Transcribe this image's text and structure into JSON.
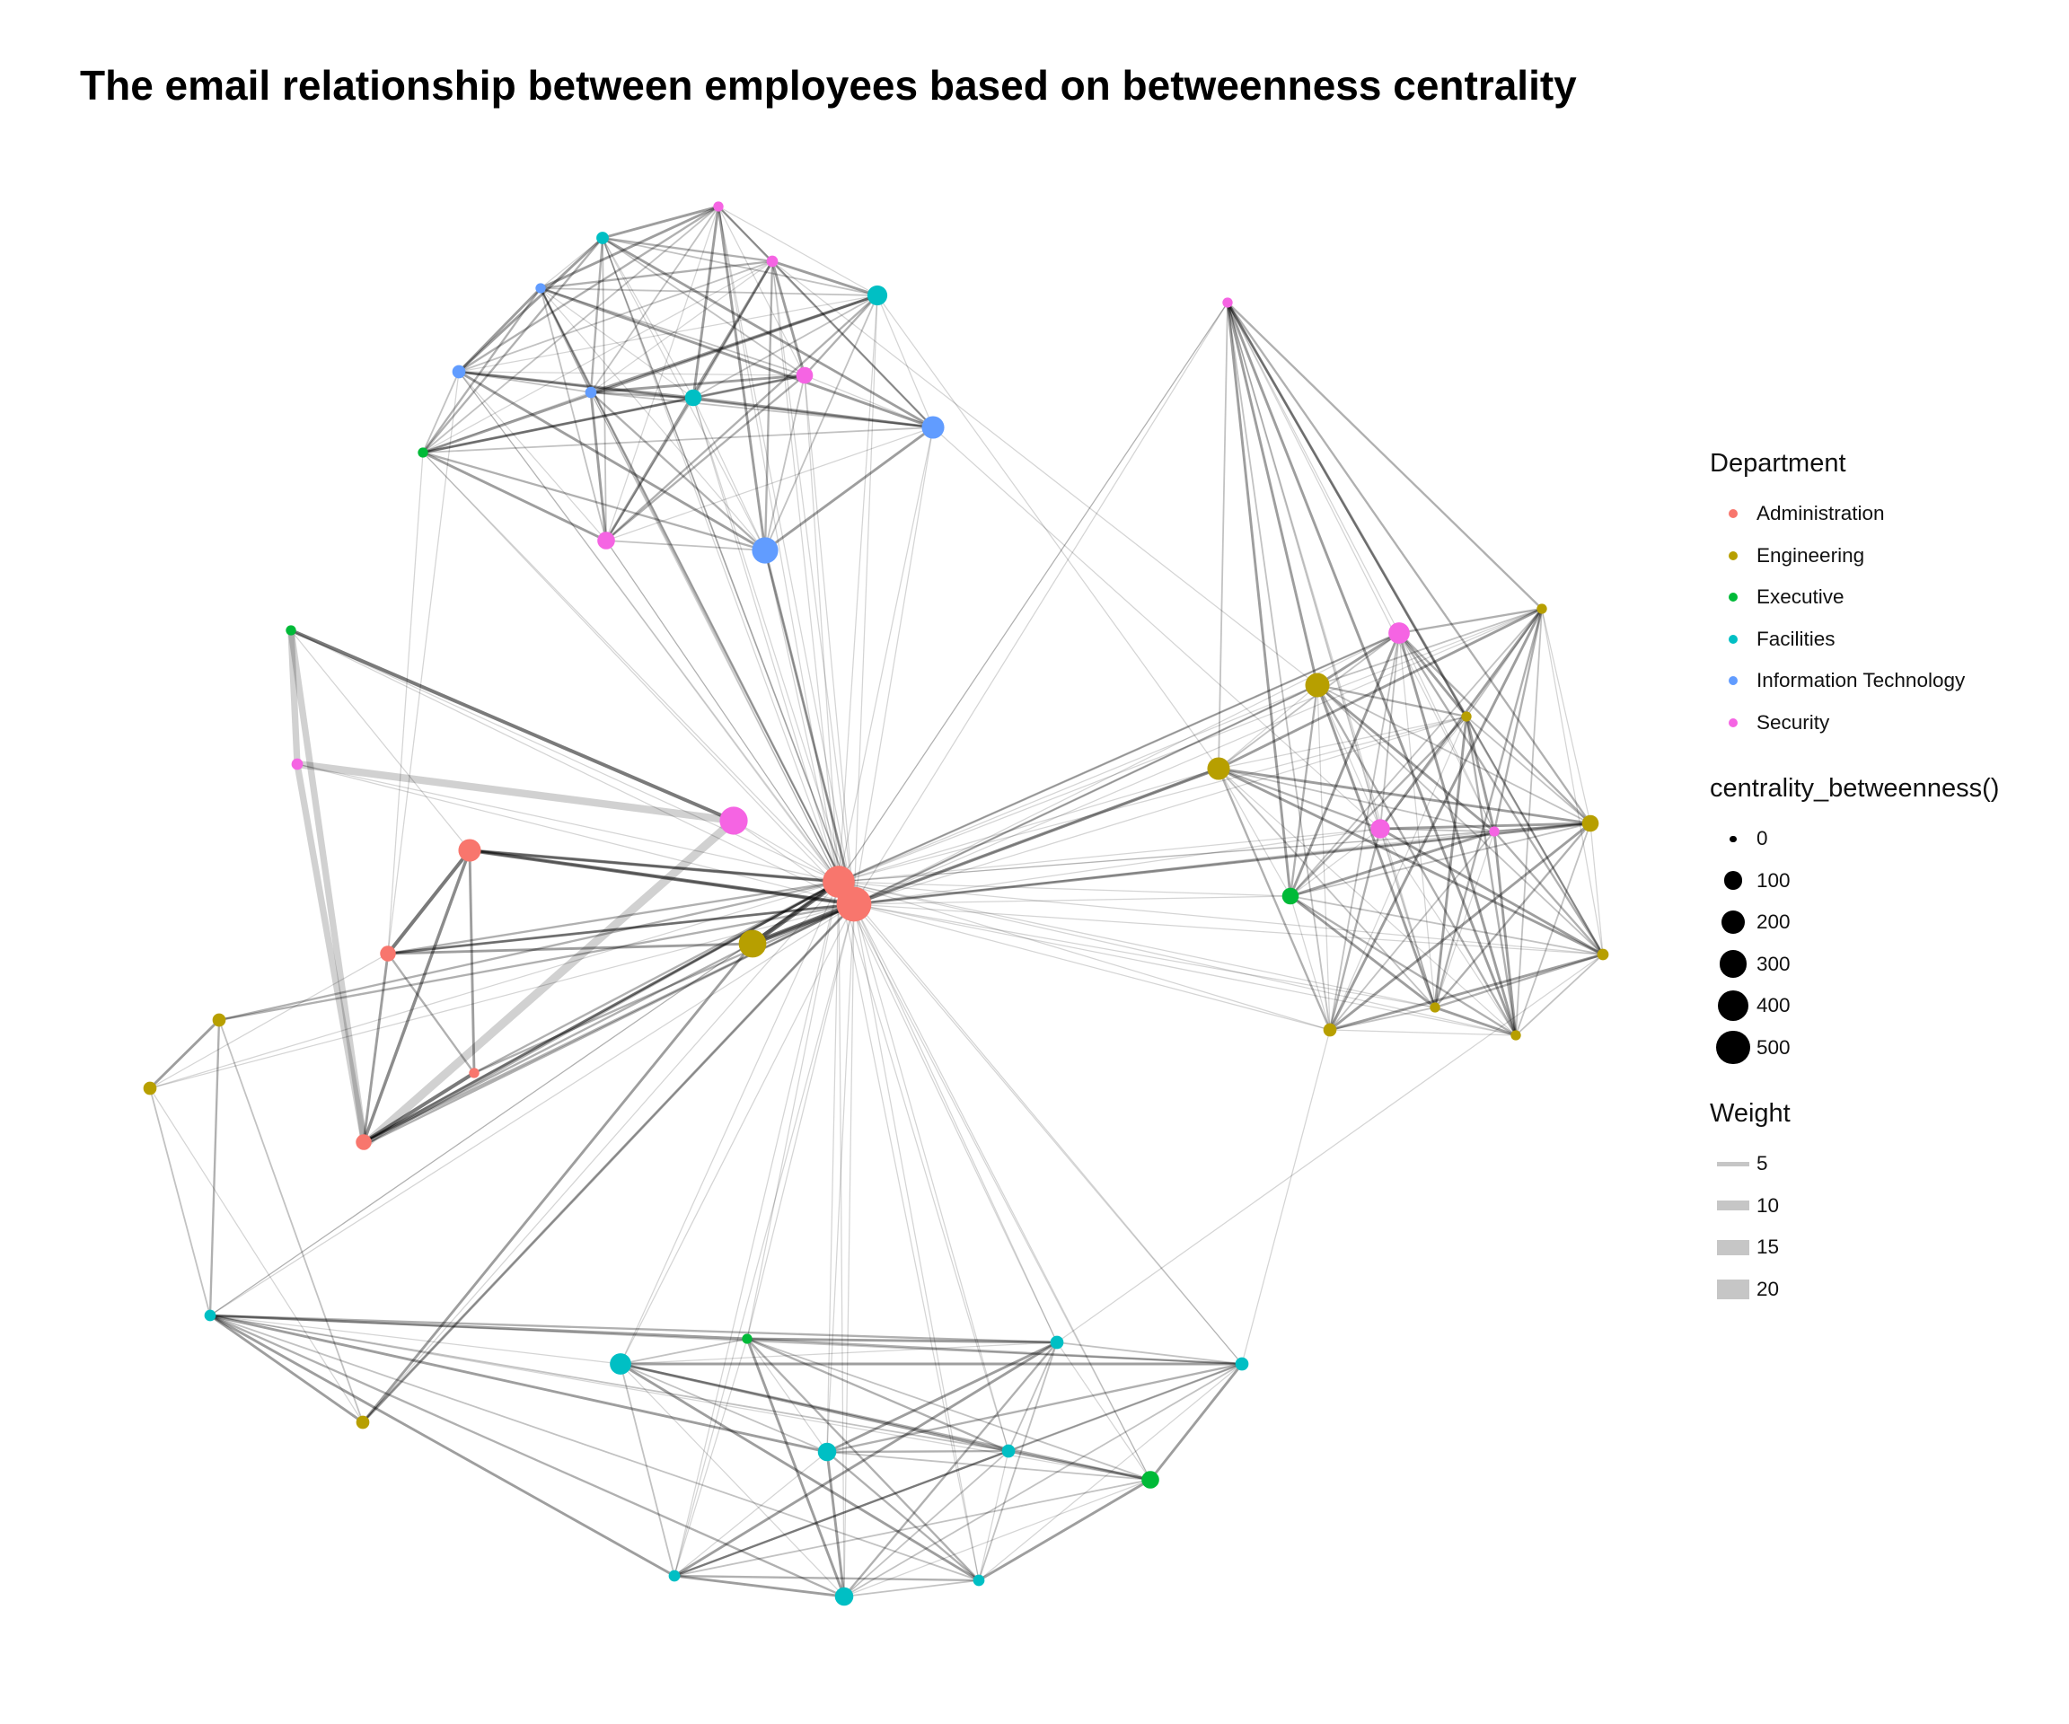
{
  "title": "The email relationship between employees based on betweenness centrality",
  "legend": {
    "department": {
      "title": "Department",
      "items": [
        {
          "label": "Administration",
          "color": "#F8766D"
        },
        {
          "label": "Engineering",
          "color": "#B79F00"
        },
        {
          "label": "Executive",
          "color": "#00BA38"
        },
        {
          "label": "Facilities",
          "color": "#00BFC4"
        },
        {
          "label": "Information Technology",
          "color": "#619CFF"
        },
        {
          "label": "Security",
          "color": "#F564E3"
        }
      ]
    },
    "centrality": {
      "title": "centrality_betweenness()",
      "items": [
        {
          "label": "0",
          "value": 0
        },
        {
          "label": "100",
          "value": 100
        },
        {
          "label": "200",
          "value": 200
        },
        {
          "label": "300",
          "value": 300
        },
        {
          "label": "400",
          "value": 400
        },
        {
          "label": "500",
          "value": 500
        }
      ]
    },
    "weight": {
      "title": "Weight",
      "items": [
        {
          "label": "5",
          "value": 5
        },
        {
          "label": "10",
          "value": 10
        },
        {
          "label": "15",
          "value": 15
        },
        {
          "label": "20",
          "value": 20
        }
      ]
    }
  },
  "graph": {
    "nodes": [
      {
        "id": "n1",
        "dept": "Administration",
        "betweenness": 420
      },
      {
        "id": "n2",
        "dept": "Administration",
        "betweenness": 340
      },
      {
        "id": "n3",
        "dept": "Administration",
        "betweenness": 130
      },
      {
        "id": "n4",
        "dept": "Administration",
        "betweenness": 40
      },
      {
        "id": "n5",
        "dept": "Administration",
        "betweenness": 5
      },
      {
        "id": "n6",
        "dept": "Administration",
        "betweenness": 40
      },
      {
        "id": "n7",
        "dept": "Administration",
        "betweenness": 5
      },
      {
        "id": "n8",
        "dept": "Engineering",
        "betweenness": 230
      },
      {
        "id": "n9",
        "dept": "Engineering",
        "betweenness": 20
      },
      {
        "id": "n10",
        "dept": "Engineering",
        "betweenness": 20
      },
      {
        "id": "n11",
        "dept": "Engineering",
        "betweenness": 20
      },
      {
        "id": "n12",
        "dept": "Engineering",
        "betweenness": 160
      },
      {
        "id": "n13",
        "dept": "Engineering",
        "betweenness": 130
      },
      {
        "id": "n14",
        "dept": "Engineering",
        "betweenness": 5
      },
      {
        "id": "n15",
        "dept": "Engineering",
        "betweenness": 5
      },
      {
        "id": "n16",
        "dept": "Engineering",
        "betweenness": 50
      },
      {
        "id": "n17",
        "dept": "Engineering",
        "betweenness": 10
      },
      {
        "id": "n18",
        "dept": "Engineering",
        "betweenness": 20
      },
      {
        "id": "n19",
        "dept": "Engineering",
        "betweenness": 5
      },
      {
        "id": "n20",
        "dept": "Engineering",
        "betweenness": 5
      },
      {
        "id": "n21",
        "dept": "Executive",
        "betweenness": 5
      },
      {
        "id": "n22",
        "dept": "Executive",
        "betweenness": 5
      },
      {
        "id": "n23",
        "dept": "Executive",
        "betweenness": 50
      },
      {
        "id": "n24",
        "dept": "Executive",
        "betweenness": 5
      },
      {
        "id": "n25",
        "dept": "Executive",
        "betweenness": 60
      },
      {
        "id": "n26",
        "dept": "Facilities",
        "betweenness": 15
      },
      {
        "id": "n27",
        "dept": "Facilities",
        "betweenness": 90
      },
      {
        "id": "n28",
        "dept": "Facilities",
        "betweenness": 50
      },
      {
        "id": "n29",
        "dept": "Facilities",
        "betweenness": 70
      },
      {
        "id": "n30",
        "dept": "Facilities",
        "betweenness": 110
      },
      {
        "id": "n31",
        "dept": "Facilities",
        "betweenness": 20
      },
      {
        "id": "n32",
        "dept": "Facilities",
        "betweenness": 20
      },
      {
        "id": "n33",
        "dept": "Facilities",
        "betweenness": 10
      },
      {
        "id": "n34",
        "dept": "Facilities",
        "betweenness": 10
      },
      {
        "id": "n35",
        "dept": "Facilities",
        "betweenness": 70
      },
      {
        "id": "n36",
        "dept": "Facilities",
        "betweenness": 20
      },
      {
        "id": "n37",
        "dept": "Facilities",
        "betweenness": 10
      },
      {
        "id": "n38",
        "dept": "Information Technology",
        "betweenness": 5
      },
      {
        "id": "n39",
        "dept": "Information Technology",
        "betweenness": 20
      },
      {
        "id": "n40",
        "dept": "Information Technology",
        "betweenness": 10
      },
      {
        "id": "n41",
        "dept": "Information Technology",
        "betweenness": 130
      },
      {
        "id": "n42",
        "dept": "Information Technology",
        "betweenness": 200
      },
      {
        "id": "n43",
        "dept": "Security",
        "betweenness": 5
      },
      {
        "id": "n44",
        "dept": "Security",
        "betweenness": 10
      },
      {
        "id": "n45",
        "dept": "Security",
        "betweenness": 50
      },
      {
        "id": "n46",
        "dept": "Security",
        "betweenness": 5
      },
      {
        "id": "n47",
        "dept": "Security",
        "betweenness": 110
      },
      {
        "id": "n48",
        "dept": "Security",
        "betweenness": 10
      },
      {
        "id": "n49",
        "dept": "Security",
        "betweenness": 240
      },
      {
        "id": "n50",
        "dept": "Security",
        "betweenness": 60
      },
      {
        "id": "n51",
        "dept": "Security",
        "betweenness": 80
      },
      {
        "id": "n52",
        "dept": "Security",
        "betweenness": 5
      }
    ]
  }
}
